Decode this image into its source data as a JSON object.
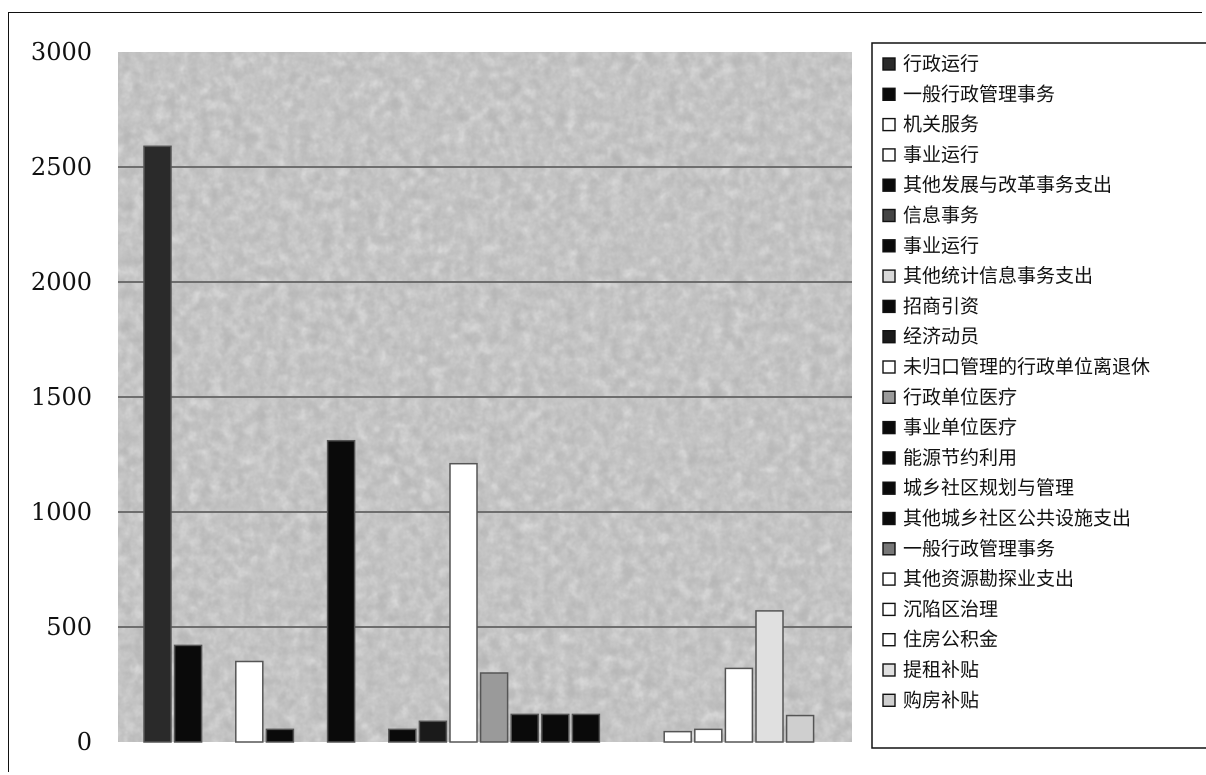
{
  "chart_data": {
    "type": "bar",
    "ylim": [
      0,
      3000
    ],
    "yticks": [
      "0",
      "500",
      "1000",
      "1500",
      "2000",
      "2500",
      "3000"
    ],
    "grid": true,
    "legend_position": "right",
    "series": [
      {
        "name": "行政运行",
        "value": 2590,
        "color": "#2a2a2a"
      },
      {
        "name": "一般行政管理事务",
        "value": 420,
        "color": "#0a0a0a"
      },
      {
        "name": "机关服务",
        "value": 0,
        "color": "#ffffff"
      },
      {
        "name": "事业运行",
        "value": 350,
        "color": "#ffffff"
      },
      {
        "name": "其他发展与改革事务支出",
        "value": 55,
        "color": "#0a0a0a"
      },
      {
        "name": "信息事务",
        "value": 0,
        "color": "#444444"
      },
      {
        "name": "事业运行",
        "value": 1310,
        "color": "#0a0a0a"
      },
      {
        "name": "其他统计信息事务支出",
        "value": 0,
        "color": "#d8d8d8"
      },
      {
        "name": "招商引资",
        "value": 55,
        "color": "#0a0a0a"
      },
      {
        "name": "经济动员",
        "value": 90,
        "color": "#1a1a1a"
      },
      {
        "name": "未归口管理的行政单位离退休",
        "value": 1210,
        "color": "#ffffff"
      },
      {
        "name": "行政单位医疗",
        "value": 300,
        "color": "#9a9a9a"
      },
      {
        "name": "事业单位医疗",
        "value": 120,
        "color": "#0a0a0a"
      },
      {
        "name": "能源节约利用",
        "value": 120,
        "color": "#0a0a0a"
      },
      {
        "name": "城乡社区规划与管理",
        "value": 120,
        "color": "#0a0a0a"
      },
      {
        "name": "其他城乡社区公共设施支出",
        "value": 0,
        "color": "#0a0a0a"
      },
      {
        "name": "一般行政管理事务",
        "value": 0,
        "color": "#777777"
      },
      {
        "name": "其他资源勘探业支出",
        "value": 45,
        "color": "#ffffff"
      },
      {
        "name": "沉陷区治理",
        "value": 55,
        "color": "#ffffff"
      },
      {
        "name": "住房公积金",
        "value": 320,
        "color": "#ffffff"
      },
      {
        "name": "提租补贴",
        "value": 570,
        "color": "#e0e0e0"
      },
      {
        "name": "购房补贴",
        "value": 115,
        "color": "#cfcfcf"
      }
    ]
  }
}
